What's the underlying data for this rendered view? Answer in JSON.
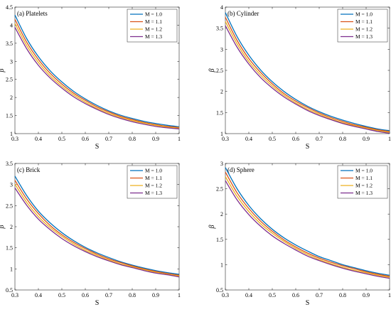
{
  "chart_data": [
    {
      "type": "line",
      "title": "(a) Platelets",
      "xlabel": "S",
      "ylabel": "β",
      "xlim": [
        0.3,
        1
      ],
      "ylim": [
        1,
        4.5
      ],
      "xticks": [
        "0.3",
        "0.4",
        "0.5",
        "0.6",
        "0.7",
        "0.8",
        "0.9",
        "1"
      ],
      "yticks": [
        "1",
        "1.5",
        "2",
        "2.5",
        "3",
        "3.5",
        "4",
        "4.5"
      ],
      "legend_position": "top-right",
      "grid": false,
      "series": [
        {
          "name": "M = 1.0",
          "color": "#0072BD",
          "x": [
            0.3,
            0.35,
            0.4,
            0.45,
            0.5,
            0.55,
            0.6,
            0.65,
            0.7,
            0.75,
            0.8,
            0.85,
            0.9,
            0.95,
            1.0
          ],
          "y": [
            4.28,
            3.63,
            3.13,
            2.74,
            2.43,
            2.17,
            1.96,
            1.78,
            1.63,
            1.51,
            1.42,
            1.34,
            1.28,
            1.23,
            1.19
          ]
        },
        {
          "name": "M = 1.1",
          "color": "#D95319",
          "x": [
            0.3,
            0.35,
            0.4,
            0.45,
            0.5,
            0.55,
            0.6,
            0.65,
            0.7,
            0.75,
            0.8,
            0.85,
            0.9,
            0.95,
            1.0
          ],
          "y": [
            4.16,
            3.53,
            3.05,
            2.67,
            2.37,
            2.12,
            1.92,
            1.74,
            1.6,
            1.48,
            1.39,
            1.31,
            1.25,
            1.2,
            1.17
          ]
        },
        {
          "name": "M = 1.2",
          "color": "#EDB120",
          "x": [
            0.3,
            0.35,
            0.4,
            0.45,
            0.5,
            0.55,
            0.6,
            0.65,
            0.7,
            0.75,
            0.8,
            0.85,
            0.9,
            0.95,
            1.0
          ],
          "y": [
            4.05,
            3.44,
            2.97,
            2.6,
            2.31,
            2.07,
            1.87,
            1.7,
            1.56,
            1.45,
            1.36,
            1.29,
            1.23,
            1.18,
            1.15
          ]
        },
        {
          "name": "M = 1.3",
          "color": "#7E2F8E",
          "x": [
            0.3,
            0.35,
            0.4,
            0.45,
            0.5,
            0.55,
            0.6,
            0.65,
            0.7,
            0.75,
            0.8,
            0.85,
            0.9,
            0.95,
            1.0
          ],
          "y": [
            3.94,
            3.35,
            2.89,
            2.54,
            2.26,
            2.02,
            1.83,
            1.67,
            1.53,
            1.42,
            1.33,
            1.26,
            1.2,
            1.16,
            1.13
          ]
        }
      ]
    },
    {
      "type": "line",
      "title": "(b) Cylinder",
      "xlabel": "S",
      "ylabel": "β",
      "xlim": [
        0.3,
        1
      ],
      "ylim": [
        1,
        4
      ],
      "xticks": [
        "0.3",
        "0.4",
        "0.5",
        "0.6",
        "0.7",
        "0.8",
        "0.9",
        "1"
      ],
      "yticks": [
        "1",
        "1.5",
        "2",
        "2.5",
        "3",
        "3.5",
        "4"
      ],
      "legend_position": "top-right",
      "grid": false,
      "series": [
        {
          "name": "M = 1.0",
          "color": "#0072BD",
          "x": [
            0.3,
            0.35,
            0.4,
            0.45,
            0.5,
            0.55,
            0.6,
            0.65,
            0.7,
            0.75,
            0.8,
            0.85,
            0.9,
            0.95,
            1.0
          ],
          "y": [
            3.87,
            3.3,
            2.86,
            2.51,
            2.23,
            2.0,
            1.81,
            1.65,
            1.52,
            1.41,
            1.32,
            1.24,
            1.17,
            1.11,
            1.07
          ]
        },
        {
          "name": "M = 1.1",
          "color": "#D95319",
          "x": [
            0.3,
            0.35,
            0.4,
            0.45,
            0.5,
            0.55,
            0.6,
            0.65,
            0.7,
            0.75,
            0.8,
            0.85,
            0.9,
            0.95,
            1.0
          ],
          "y": [
            3.76,
            3.21,
            2.78,
            2.45,
            2.18,
            1.95,
            1.77,
            1.62,
            1.49,
            1.38,
            1.29,
            1.21,
            1.15,
            1.09,
            1.05
          ]
        },
        {
          "name": "M = 1.2",
          "color": "#EDB120",
          "x": [
            0.3,
            0.35,
            0.4,
            0.45,
            0.5,
            0.55,
            0.6,
            0.65,
            0.7,
            0.75,
            0.8,
            0.85,
            0.9,
            0.95,
            1.0
          ],
          "y": [
            3.66,
            3.13,
            2.71,
            2.39,
            2.13,
            1.91,
            1.73,
            1.58,
            1.46,
            1.35,
            1.26,
            1.19,
            1.13,
            1.07,
            1.03
          ]
        },
        {
          "name": "M = 1.3",
          "color": "#7E2F8E",
          "x": [
            0.3,
            0.35,
            0.4,
            0.45,
            0.5,
            0.55,
            0.6,
            0.65,
            0.7,
            0.75,
            0.8,
            0.85,
            0.9,
            0.95,
            1.0
          ],
          "y": [
            3.56,
            3.05,
            2.65,
            2.33,
            2.08,
            1.87,
            1.7,
            1.55,
            1.43,
            1.33,
            1.24,
            1.17,
            1.11,
            1.05,
            1.01
          ]
        }
      ]
    },
    {
      "type": "line",
      "title": "(c) Brick",
      "xlabel": "S",
      "ylabel": "β",
      "xlim": [
        0.3,
        1
      ],
      "ylim": [
        0.5,
        3.5
      ],
      "xticks": [
        "0.3",
        "0.4",
        "0.5",
        "0.6",
        "0.7",
        "0.8",
        "0.9",
        "1"
      ],
      "yticks": [
        "0.5",
        "1",
        "1.5",
        "2",
        "2.5",
        "3",
        "3.5"
      ],
      "legend_position": "top-right",
      "grid": false,
      "series": [
        {
          "name": "M = 1.0",
          "color": "#0072BD",
          "x": [
            0.3,
            0.35,
            0.4,
            0.45,
            0.5,
            0.55,
            0.6,
            0.65,
            0.7,
            0.75,
            0.8,
            0.85,
            0.9,
            0.95,
            1.0
          ],
          "y": [
            3.2,
            2.74,
            2.37,
            2.09,
            1.86,
            1.67,
            1.51,
            1.38,
            1.27,
            1.17,
            1.09,
            1.02,
            0.96,
            0.91,
            0.87
          ]
        },
        {
          "name": "M = 1.1",
          "color": "#D95319",
          "x": [
            0.3,
            0.35,
            0.4,
            0.45,
            0.5,
            0.55,
            0.6,
            0.65,
            0.7,
            0.75,
            0.8,
            0.85,
            0.9,
            0.95,
            1.0
          ],
          "y": [
            3.1,
            2.66,
            2.31,
            2.03,
            1.81,
            1.63,
            1.48,
            1.35,
            1.24,
            1.15,
            1.07,
            1.0,
            0.94,
            0.89,
            0.85
          ]
        },
        {
          "name": "M = 1.2",
          "color": "#EDB120",
          "x": [
            0.3,
            0.35,
            0.4,
            0.45,
            0.5,
            0.55,
            0.6,
            0.65,
            0.7,
            0.75,
            0.8,
            0.85,
            0.9,
            0.95,
            1.0
          ],
          "y": [
            3.01,
            2.58,
            2.24,
            1.98,
            1.77,
            1.59,
            1.44,
            1.32,
            1.21,
            1.12,
            1.05,
            0.98,
            0.92,
            0.87,
            0.83
          ]
        },
        {
          "name": "M = 1.3",
          "color": "#7E2F8E",
          "x": [
            0.3,
            0.35,
            0.4,
            0.45,
            0.5,
            0.55,
            0.6,
            0.65,
            0.7,
            0.75,
            0.8,
            0.85,
            0.9,
            0.95,
            1.0
          ],
          "y": [
            2.92,
            2.51,
            2.18,
            1.93,
            1.72,
            1.55,
            1.41,
            1.29,
            1.19,
            1.1,
            1.03,
            0.96,
            0.9,
            0.86,
            0.81
          ]
        }
      ]
    },
    {
      "type": "line",
      "title": "(d) Sphere",
      "xlabel": "S",
      "ylabel": "β",
      "xlim": [
        0.3,
        1
      ],
      "ylim": [
        0.5,
        3
      ],
      "xticks": [
        "0.3",
        "0.4",
        "0.5",
        "0.6",
        "0.7",
        "0.8",
        "0.9",
        "1"
      ],
      "yticks": [
        "0.5",
        "1",
        "1.5",
        "2",
        "2.5",
        "3"
      ],
      "legend_position": "top-right",
      "grid": false,
      "series": [
        {
          "name": "M = 1.0",
          "color": "#0072BD",
          "x": [
            0.3,
            0.35,
            0.4,
            0.45,
            0.5,
            0.55,
            0.6,
            0.65,
            0.7,
            0.75,
            0.8,
            0.85,
            0.9,
            0.95,
            1.0
          ],
          "y": [
            2.92,
            2.5,
            2.17,
            1.91,
            1.7,
            1.53,
            1.39,
            1.27,
            1.16,
            1.08,
            1.0,
            0.94,
            0.88,
            0.83,
            0.79
          ]
        },
        {
          "name": "M = 1.1",
          "color": "#D95319",
          "x": [
            0.3,
            0.35,
            0.4,
            0.45,
            0.5,
            0.55,
            0.6,
            0.65,
            0.7,
            0.75,
            0.8,
            0.85,
            0.9,
            0.95,
            1.0
          ],
          "y": [
            2.83,
            2.42,
            2.11,
            1.86,
            1.66,
            1.49,
            1.35,
            1.23,
            1.13,
            1.05,
            0.98,
            0.92,
            0.86,
            0.81,
            0.77
          ]
        },
        {
          "name": "M = 1.2",
          "color": "#EDB120",
          "x": [
            0.3,
            0.35,
            0.4,
            0.45,
            0.5,
            0.55,
            0.6,
            0.65,
            0.7,
            0.75,
            0.8,
            0.85,
            0.9,
            0.95,
            1.0
          ],
          "y": [
            2.74,
            2.35,
            2.05,
            1.81,
            1.62,
            1.46,
            1.32,
            1.2,
            1.1,
            1.02,
            0.95,
            0.89,
            0.84,
            0.79,
            0.75
          ]
        },
        {
          "name": "M = 1.3",
          "color": "#7E2F8E",
          "x": [
            0.3,
            0.35,
            0.4,
            0.45,
            0.5,
            0.55,
            0.6,
            0.65,
            0.7,
            0.75,
            0.8,
            0.85,
            0.9,
            0.95,
            1.0
          ],
          "y": [
            2.66,
            2.28,
            1.99,
            1.76,
            1.57,
            1.42,
            1.29,
            1.17,
            1.08,
            1.0,
            0.93,
            0.87,
            0.82,
            0.77,
            0.73
          ]
        }
      ]
    }
  ]
}
